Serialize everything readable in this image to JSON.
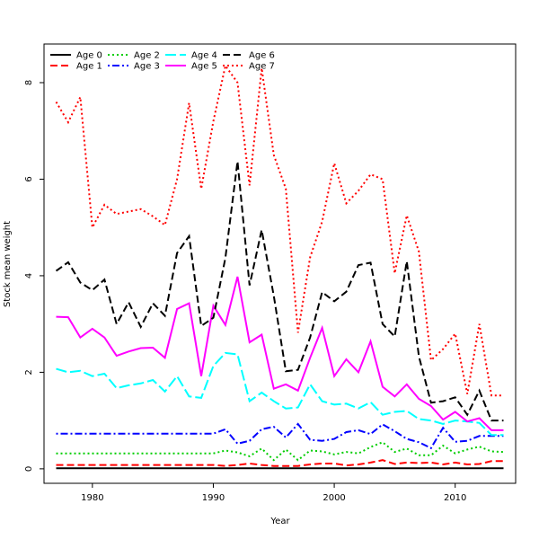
{
  "chart_data": {
    "type": "line",
    "xlabel": "Year",
    "ylabel": "Stock mean weight",
    "xlim": [
      1976,
      2015
    ],
    "ylim": [
      -0.3,
      8.8
    ],
    "x_ticks": [
      1980,
      1990,
      2000,
      2010
    ],
    "y_ticks": [
      0,
      2,
      4,
      6,
      8
    ],
    "grid": false,
    "legend_position": "top-left",
    "x": [
      1977,
      1978,
      1979,
      1980,
      1981,
      1982,
      1983,
      1984,
      1985,
      1986,
      1987,
      1988,
      1989,
      1990,
      1991,
      1992,
      1993,
      1994,
      1995,
      1996,
      1997,
      1998,
      1999,
      2000,
      2001,
      2002,
      2003,
      2004,
      2005,
      2006,
      2007,
      2008,
      2009,
      2010,
      2011,
      2012,
      2013,
      2014
    ],
    "series": [
      {
        "name": "Age 0",
        "color": "#000000",
        "dash": "solid",
        "values": [
          0.01,
          0.01,
          0.01,
          0.01,
          0.01,
          0.01,
          0.01,
          0.01,
          0.01,
          0.01,
          0.01,
          0.01,
          0.01,
          0.01,
          0.01,
          0.01,
          0.01,
          0.01,
          0.01,
          0.01,
          0.01,
          0.01,
          0.01,
          0.01,
          0.01,
          0.01,
          0.01,
          0.01,
          0.01,
          0.01,
          0.01,
          0.01,
          0.01,
          0.01,
          0.01,
          0.01,
          0.01,
          0.01
        ]
      },
      {
        "name": "Age 1",
        "color": "#ff0000",
        "dash": "dashed",
        "values": [
          0.08,
          0.08,
          0.08,
          0.08,
          0.08,
          0.08,
          0.08,
          0.08,
          0.08,
          0.08,
          0.08,
          0.08,
          0.08,
          0.08,
          0.06,
          0.08,
          0.11,
          0.08,
          0.06,
          0.06,
          0.06,
          0.09,
          0.11,
          0.11,
          0.07,
          0.09,
          0.13,
          0.18,
          0.1,
          0.13,
          0.12,
          0.13,
          0.09,
          0.13,
          0.09,
          0.1,
          0.16,
          0.16
        ]
      },
      {
        "name": "Age 2",
        "color": "#00cd00",
        "dash": "dotted",
        "values": [
          0.32,
          0.32,
          0.32,
          0.32,
          0.32,
          0.32,
          0.32,
          0.32,
          0.32,
          0.32,
          0.32,
          0.32,
          0.32,
          0.32,
          0.38,
          0.34,
          0.26,
          0.42,
          0.18,
          0.4,
          0.18,
          0.38,
          0.36,
          0.3,
          0.35,
          0.32,
          0.45,
          0.55,
          0.35,
          0.42,
          0.28,
          0.28,
          0.48,
          0.32,
          0.4,
          0.46,
          0.36,
          0.35
        ]
      },
      {
        "name": "Age 3",
        "color": "#0000ff",
        "dash": "dotdash",
        "values": [
          0.73,
          0.73,
          0.73,
          0.73,
          0.73,
          0.73,
          0.73,
          0.73,
          0.73,
          0.73,
          0.73,
          0.73,
          0.73,
          0.73,
          0.82,
          0.52,
          0.58,
          0.82,
          0.87,
          0.65,
          0.93,
          0.6,
          0.58,
          0.62,
          0.76,
          0.8,
          0.72,
          0.92,
          0.78,
          0.62,
          0.55,
          0.43,
          0.85,
          0.56,
          0.58,
          0.68,
          0.68,
          0.68
        ]
      },
      {
        "name": "Age 4",
        "color": "#00ffff",
        "dash": "longdash",
        "values": [
          2.07,
          2.0,
          2.03,
          1.92,
          1.97,
          1.67,
          1.73,
          1.77,
          1.84,
          1.6,
          1.92,
          1.5,
          1.47,
          2.13,
          2.4,
          2.37,
          1.4,
          1.58,
          1.4,
          1.25,
          1.27,
          1.75,
          1.4,
          1.33,
          1.35,
          1.25,
          1.38,
          1.12,
          1.18,
          1.2,
          1.03,
          1.0,
          0.93,
          1.0,
          0.98,
          0.95,
          0.7,
          0.7
        ]
      },
      {
        "name": "Age 5",
        "color": "#ff00ff",
        "dash": "solid",
        "values": [
          3.15,
          3.14,
          2.72,
          2.9,
          2.72,
          2.34,
          2.43,
          2.5,
          2.51,
          2.3,
          3.31,
          3.43,
          1.92,
          3.38,
          2.98,
          3.98,
          2.62,
          2.78,
          1.66,
          1.75,
          1.62,
          2.3,
          2.92,
          1.92,
          2.27,
          2.0,
          2.64,
          1.7,
          1.5,
          1.75,
          1.45,
          1.3,
          1.02,
          1.18,
          0.98,
          1.05,
          0.8,
          0.8
        ]
      },
      {
        "name": "Age 6",
        "color": "#000000",
        "dash": "dashed",
        "values": [
          4.1,
          4.28,
          3.86,
          3.7,
          3.92,
          3.0,
          3.45,
          2.94,
          3.43,
          3.17,
          4.47,
          4.82,
          2.96,
          3.13,
          4.37,
          6.37,
          3.8,
          4.95,
          3.58,
          2.02,
          2.05,
          2.72,
          3.66,
          3.47,
          3.67,
          4.22,
          4.27,
          3.0,
          2.74,
          4.3,
          2.33,
          1.37,
          1.4,
          1.48,
          1.12,
          1.62,
          1.0,
          1.0
        ]
      },
      {
        "name": "Age 7",
        "color": "#ff0000",
        "dash": "dotted",
        "values": [
          7.6,
          7.18,
          7.7,
          5.0,
          5.47,
          5.28,
          5.33,
          5.38,
          5.23,
          5.05,
          6.0,
          7.58,
          5.8,
          7.2,
          8.35,
          8.0,
          5.87,
          8.3,
          6.5,
          5.8,
          2.82,
          4.38,
          5.12,
          6.33,
          5.5,
          5.76,
          6.1,
          6.0,
          4.05,
          5.25,
          4.5,
          2.25,
          2.48,
          2.8,
          1.55,
          3.0,
          1.52,
          1.52
        ]
      }
    ]
  }
}
